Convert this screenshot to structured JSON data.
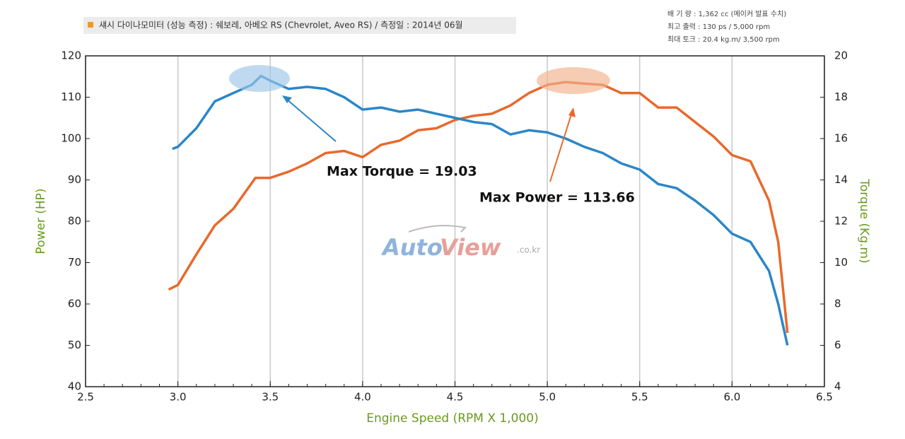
{
  "chart_data": {
    "type": "line",
    "title": "섀시 다이나모미터 (성능 측정) : 쉐보레, 아베오 RS (Chevrolet, Aveo RS) / 측정일 : 2014년 06월",
    "notes": [
      "배 기 량 : 1,362 cc   (메이커 발표 수치)",
      "최고 출력 : 130 ps / 5,000 rpm",
      "최대 토크 : 20.4 kg.m/ 3,500 rpm"
    ],
    "watermark": [
      "Auto",
      "View",
      ".co.kr"
    ],
    "x_label": "Engine Speed (RPM X 1,000)",
    "y_label": "Power (HP)",
    "y2_label": "Torque (Kg.m)",
    "annotations": [
      "Max Torque = 19.03",
      "Max Power = 113.66"
    ],
    "xlim": [
      2.5,
      6.5
    ],
    "xticks": [
      2.5,
      {
        "value": 3,
        "label": "3.0"
      },
      3.5,
      {
        "value": 4,
        "label": "4.0"
      },
      4.5,
      {
        "value": 5,
        "label": "5.0"
      },
      5.5,
      {
        "value": 6,
        "label": "6.0"
      },
      6.5
    ],
    "ylim": [
      40,
      120
    ],
    "yticks": [
      40,
      50,
      60,
      70,
      80,
      90,
      100,
      110,
      120
    ],
    "y2lim": [
      4,
      20
    ],
    "y2ticks": [
      4,
      6,
      8,
      10,
      12,
      14,
      16,
      18,
      20
    ],
    "grid": "x",
    "series": [
      {
        "name": "Power",
        "color": "#e8692b",
        "axis": "y",
        "x": [
          2.95,
          3.0,
          3.1,
          3.2,
          3.3,
          3.42,
          3.5,
          3.6,
          3.7,
          3.8,
          3.9,
          4.0,
          4.1,
          4.2,
          4.3,
          4.4,
          4.5,
          4.6,
          4.7,
          4.8,
          4.9,
          5.0,
          5.1,
          5.2,
          5.3,
          5.4,
          5.5,
          5.6,
          5.7,
          5.8,
          5.9,
          6.0,
          6.1,
          6.2,
          6.25,
          6.3
        ],
        "values": [
          63.5,
          64.6,
          72,
          79,
          83,
          90.5,
          90.5,
          92,
          94,
          96.5,
          97,
          95.5,
          98.5,
          99.5,
          102,
          102.5,
          104.5,
          105.5,
          106,
          108,
          111,
          113,
          113.66,
          113.3,
          113,
          111,
          111,
          107.5,
          107.5,
          104,
          100.5,
          96,
          94.5,
          85,
          75,
          53
        ]
      },
      {
        "name": "Torque",
        "color": "#2b86c8",
        "axis": "y2",
        "x": [
          2.97,
          3.0,
          3.1,
          3.2,
          3.3,
          3.4,
          3.45,
          3.5,
          3.6,
          3.7,
          3.8,
          3.9,
          4.0,
          4.1,
          4.2,
          4.3,
          4.4,
          4.5,
          4.6,
          4.7,
          4.8,
          4.9,
          5.0,
          5.1,
          5.2,
          5.3,
          5.4,
          5.5,
          5.6,
          5.7,
          5.8,
          5.9,
          6.0,
          6.1,
          6.2,
          6.25,
          6.3
        ],
        "values": [
          15.5,
          15.6,
          16.5,
          17.8,
          18.2,
          18.6,
          19.03,
          18.8,
          18.4,
          18.5,
          18.4,
          18.0,
          17.4,
          17.5,
          17.3,
          17.4,
          17.2,
          17.0,
          16.8,
          16.7,
          16.2,
          16.4,
          16.3,
          16.0,
          15.6,
          15.3,
          14.8,
          14.5,
          13.8,
          13.6,
          13.0,
          12.3,
          11.4,
          11.0,
          9.6,
          8.0,
          6.0
        ]
      }
    ]
  }
}
